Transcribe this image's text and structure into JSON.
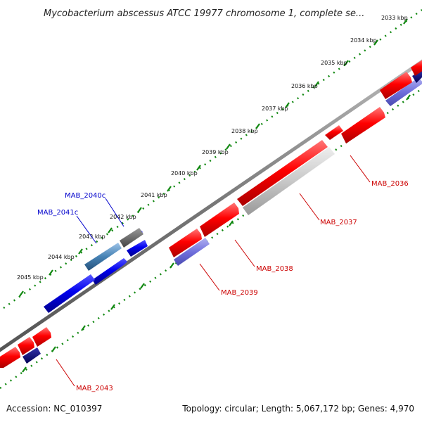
{
  "title": "Mycobacterium abscessus ATCC 19977 chromosome 1, complete se...",
  "tick_labels": [
    "2033 kbp",
    "2034 kbp",
    "2035 kbp",
    "2036 kbp",
    "2037 kbp",
    "2038 kbp",
    "2039 kbp",
    "2040 kbp",
    "2041 kbp",
    "2042 kbp",
    "2043 kbp",
    "2044 kbp",
    "2045 kbp"
  ],
  "gene_labels": {
    "mab2036": "MAB_2036",
    "mab2037": "MAB_2037",
    "mab2038": "MAB_2038",
    "mab2039": "MAB_2039",
    "mab2040c": "MAB_2040c",
    "mab2041c": "MAB_2041c",
    "mab2043": "MAB_2043"
  },
  "footer": {
    "accession": "Accession: NC_010397",
    "summary": "Topology: circular; Length: 5,067,172 bp; Genes: 4,970"
  },
  "colors": {
    "forward_gene": "#ff0000",
    "reverse_gene": "#0000ff",
    "gc_skew": "#7777dd",
    "backbone": "#808080",
    "tick_green": "#118811"
  }
}
